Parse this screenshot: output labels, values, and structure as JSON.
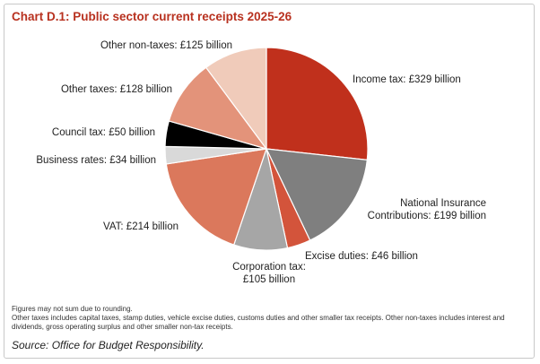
{
  "chart_data": {
    "type": "pie",
    "title": "Chart D.1: Public sector current receipts 2025-26",
    "unit": "£ billion",
    "slices": [
      {
        "label": "Income tax: £329 billion",
        "value": 329,
        "color": "#c0301c"
      },
      {
        "label": "National Insurance Contributions: £199 billion",
        "value": 199,
        "color": "#7f7f7f"
      },
      {
        "label": "Excise duties: £46 billion",
        "value": 46,
        "color": "#d3543b"
      },
      {
        "label": "Corporation tax: £105 billion",
        "value": 105,
        "color": "#a6a6a6"
      },
      {
        "label": "VAT: £214 billion",
        "value": 214,
        "color": "#db785c"
      },
      {
        "label": "Business rates: £34 billion",
        "value": 34,
        "color": "#d9d9d9"
      },
      {
        "label": "Council tax: £50 billion",
        "value": 50,
        "color": "#000000"
      },
      {
        "label": "Other taxes: £128 billion",
        "value": 128,
        "color": "#e3937a"
      },
      {
        "label": "Other non-taxes: £125 billion",
        "value": 125,
        "color": "#f0cbba"
      }
    ]
  },
  "notes": [
    "Figures may not sum due to rounding.",
    "Other taxes includes capital taxes, stamp duties, vehicle excise duties, customs duties and other smaller tax receipts. Other non-taxes includes interest and dividends, gross operating surplus and other smaller non-tax receipts."
  ],
  "source": "Source: Office for Budget Responsibility."
}
